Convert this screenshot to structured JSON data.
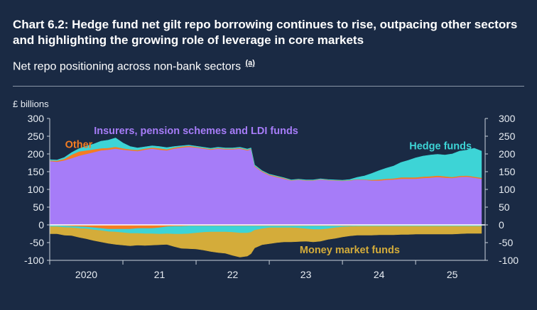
{
  "header": {
    "title": "Chart 6.2: Hedge fund net gilt repo borrowing continues to rise, outpacing other sectors and highlighting the growing role of leverage in core markets",
    "subtitle": "Net repo positioning across non-bank sectors",
    "footnote_marker": "(a)"
  },
  "colors": {
    "background": "#1a2a44",
    "insurers": "#a67cf8",
    "hedge_funds": "#3dd4d6",
    "other": "#f47d22",
    "money_market": "#d4ac3a",
    "axis": "#c9d1db"
  },
  "chart_data": {
    "type": "area",
    "ylabel": "£ billions",
    "ylim": [
      -100,
      300
    ],
    "yticks": [
      -100,
      -50,
      0,
      50,
      100,
      150,
      200,
      250,
      300
    ],
    "xlim": [
      2019.5,
      2025.45
    ],
    "xtick_labels": [
      {
        "label": "2020",
        "x": 2020.0
      },
      {
        "label": "21",
        "x": 2021.0
      },
      {
        "label": "22",
        "x": 2022.0
      },
      {
        "label": "23",
        "x": 2023.0
      },
      {
        "label": "24",
        "x": 2024.0
      },
      {
        "label": "25",
        "x": 2025.0
      }
    ],
    "year_boundaries": [
      2019.5,
      2020.5,
      2021.5,
      2022.5,
      2023.5,
      2024.5
    ],
    "grid": false,
    "annotations": [
      {
        "text": "Insurers, pension schemes and LDI funds",
        "series": "insurers"
      },
      {
        "text": "Other",
        "series": "other"
      },
      {
        "text": "Hedge funds",
        "series": "hedge_funds"
      },
      {
        "text": "Money market funds",
        "series": "money_market"
      }
    ],
    "x": [
      2019.5,
      2019.6,
      2019.7,
      2019.8,
      2019.9,
      2020.0,
      2020.1,
      2020.2,
      2020.3,
      2020.4,
      2020.5,
      2020.6,
      2020.7,
      2020.8,
      2020.9,
      2021.0,
      2021.1,
      2021.2,
      2021.3,
      2021.4,
      2021.5,
      2021.6,
      2021.7,
      2021.8,
      2021.9,
      2022.0,
      2022.1,
      2022.2,
      2022.25,
      2022.3,
      2022.4,
      2022.5,
      2022.6,
      2022.7,
      2022.8,
      2022.9,
      2023.0,
      2023.1,
      2023.2,
      2023.3,
      2023.4,
      2023.5,
      2023.6,
      2023.7,
      2023.8,
      2023.9,
      2024.0,
      2024.1,
      2024.2,
      2024.3,
      2024.4,
      2024.5,
      2024.6,
      2024.7,
      2024.8,
      2024.9,
      2025.0,
      2025.1,
      2025.2,
      2025.3,
      2025.4
    ],
    "series": [
      {
        "key": "insurers",
        "name": "Insurers, pension schemes and LDI funds",
        "values": [
          180,
          178,
          182,
          188,
          195,
          200,
          205,
          210,
          212,
          215,
          212,
          210,
          208,
          212,
          215,
          212,
          210,
          215,
          218,
          220,
          218,
          215,
          212,
          215,
          213,
          213,
          215,
          210,
          213,
          165,
          150,
          140,
          135,
          130,
          125,
          127,
          125,
          125,
          128,
          126,
          125,
          124,
          125,
          128,
          127,
          125,
          125,
          127,
          128,
          130,
          130,
          130,
          132,
          133,
          135,
          133,
          132,
          135,
          136,
          133,
          130
        ]
      },
      {
        "key": "other",
        "name": "Other",
        "values": [
          2,
          3,
          4,
          10,
          12,
          10,
          8,
          6,
          5,
          5,
          4,
          3,
          3,
          3,
          3,
          4,
          3,
          3,
          3,
          3,
          2,
          2,
          2,
          2,
          2,
          2,
          2,
          2,
          2,
          2,
          2,
          2,
          2,
          2,
          1,
          1,
          1,
          1,
          1,
          1,
          1,
          1,
          1,
          1,
          1,
          2,
          3,
          3,
          3,
          4,
          4,
          4,
          4,
          4,
          4,
          4,
          3,
          3,
          3,
          3,
          3
        ]
      },
      {
        "key": "hedge_funds",
        "name": "Hedge funds",
        "values": [
          2,
          2,
          4,
          6,
          8,
          12,
          15,
          20,
          22,
          25,
          15,
          8,
          6,
          5,
          5,
          5,
          5,
          3,
          2,
          2,
          2,
          2,
          2,
          2,
          2,
          2,
          2,
          2,
          2,
          2,
          1,
          1,
          1,
          1,
          1,
          1,
          1,
          1,
          1,
          1,
          1,
          1,
          2,
          5,
          10,
          18,
          25,
          30,
          35,
          42,
          48,
          55,
          58,
          60,
          60,
          60,
          65,
          70,
          72,
          80,
          75
        ]
      },
      {
        "key": "other_neg",
        "name": "Other (negative)",
        "values": [
          -2,
          -2,
          -3,
          -4,
          -5,
          -6,
          -8,
          -10,
          -12,
          -12,
          -12,
          -12,
          -10,
          -10,
          -10,
          -8,
          -5,
          -4,
          -4,
          -3,
          -3,
          -3,
          -3,
          -3,
          -3,
          -3,
          -3,
          -3,
          -3,
          -3,
          -3,
          -3,
          -3,
          -3,
          -3,
          -3,
          -3,
          -3,
          -3,
          -3,
          -3,
          -3,
          -3,
          -2,
          -2,
          -2,
          -2,
          -2,
          -2,
          -2,
          -2,
          -2,
          -2,
          -2,
          -2,
          -2,
          -2,
          -2,
          -2,
          -2,
          -2
        ]
      },
      {
        "key": "hedge_funds_neg",
        "name": "Hedge funds (negative)",
        "values": [
          -3,
          -3,
          -4,
          -4,
          -5,
          -5,
          -6,
          -6,
          -7,
          -8,
          -10,
          -12,
          -14,
          -15,
          -15,
          -18,
          -20,
          -22,
          -22,
          -22,
          -20,
          -18,
          -17,
          -17,
          -17,
          -18,
          -20,
          -20,
          -18,
          -12,
          -8,
          -5,
          -5,
          -5,
          -5,
          -6,
          -8,
          -10,
          -10,
          -8,
          -5,
          -3,
          -2,
          -2,
          -2,
          -2,
          -2,
          -2,
          -2,
          -2,
          -2,
          -2,
          -2,
          -2,
          -2,
          -2,
          -2,
          -2,
          -2,
          -2,
          -2
        ]
      },
      {
        "key": "money_market",
        "name": "Money market funds",
        "values": [
          -20,
          -20,
          -22,
          -22,
          -25,
          -28,
          -30,
          -32,
          -33,
          -35,
          -35,
          -35,
          -33,
          -33,
          -32,
          -30,
          -30,
          -35,
          -40,
          -42,
          -45,
          -50,
          -55,
          -58,
          -60,
          -65,
          -68,
          -65,
          -60,
          -50,
          -45,
          -45,
          -42,
          -40,
          -40,
          -38,
          -35,
          -35,
          -33,
          -30,
          -30,
          -28,
          -26,
          -25,
          -25,
          -25,
          -24,
          -24,
          -24,
          -23,
          -23,
          -22,
          -22,
          -22,
          -22,
          -22,
          -22,
          -21,
          -20,
          -20,
          -20
        ]
      }
    ]
  }
}
